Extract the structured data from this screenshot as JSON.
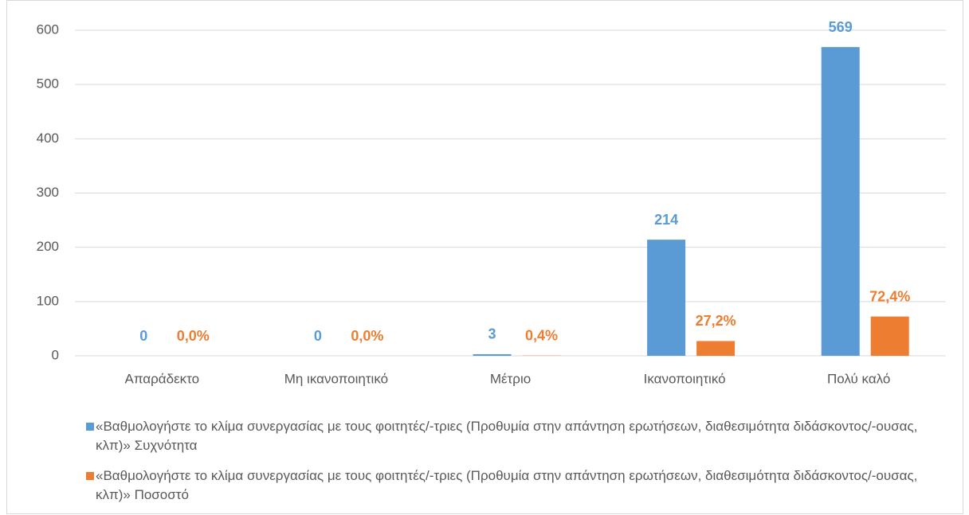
{
  "chart_data": {
    "type": "bar",
    "categories": [
      "Απαράδεκτο",
      "Μη ικανοποιητικό",
      "Μέτριο",
      "Ικανοποιητικό",
      "Πολύ καλό"
    ],
    "series": [
      {
        "name": "«Βαθμολογήστε το κλίμα συνεργασίας με τους φοιτητές/-τριες (Προθυμία στην απάντηση ερωτήσεων, διαθεσιμότητα διδάσκοντος/-ουσας, κλπ)» Συχνότητα",
        "color": "#5b9bd5",
        "values": [
          0,
          0,
          3,
          214,
          569
        ]
      },
      {
        "name": "«Βαθμολογήστε το κλίμα συνεργασίας με τους φοιτητές/-τριες (Προθυμία στην απάντηση ερωτήσεων, διαθεσιμότητα διδάσκοντος/-ουσας, κλπ)» Ποσοστό",
        "color": "#ed7d31",
        "values": [
          0.0,
          0.0,
          0.4,
          27.2,
          72.4
        ],
        "value_labels": [
          "0,0%",
          "0,0%",
          "0,4%",
          "27,2%",
          "72,4%"
        ]
      }
    ],
    "ylim": [
      0,
      600
    ],
    "yticks": [
      0,
      100,
      200,
      300,
      400,
      500,
      600
    ],
    "grid": true,
    "legend": "bottom"
  }
}
